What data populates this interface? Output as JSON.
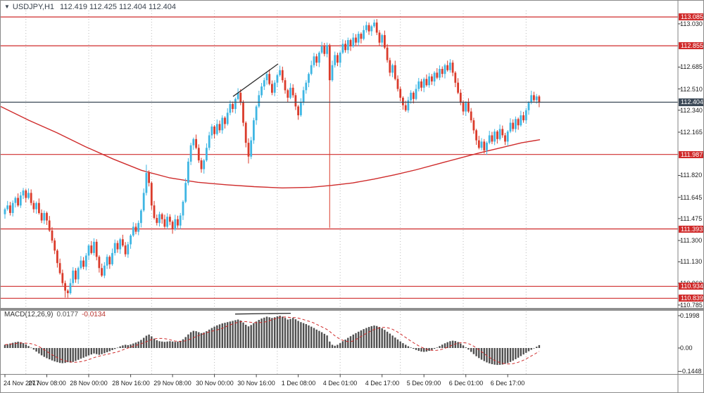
{
  "header": {
    "dropdown_icon": "▼",
    "symbol_period": "USDJPY,H1",
    "quotes": "112.419 112.425 112.404 112.404"
  },
  "macd_panel": {
    "label": "MACD(12,26,9)",
    "value_main": "0.0177",
    "value_signal": "-0.0134"
  },
  "colors": {
    "bull": "#3fb6e3",
    "bear": "#da3b2b",
    "line_red": "#cf2b2b",
    "price_line": "#3d4a58",
    "badge_red": "#d02a2a",
    "badge_current": "#3d4a58",
    "hist": "#4f4f4f",
    "trend": "#2b2b2b",
    "separator": "#b9b9b9",
    "frame": "#808080"
  },
  "chart_data": [
    {
      "type": "candlestick",
      "title": "USDJPY,H1",
      "symbol": "USDJPY",
      "timeframe": "H1",
      "ylim": [
        110.785,
        113.136
      ],
      "grid": false,
      "closes": [
        111.55,
        111.58,
        111.52,
        111.6,
        111.64,
        111.58,
        111.66,
        111.7,
        111.64,
        111.68,
        111.6,
        111.55,
        111.6,
        111.52,
        111.46,
        111.52,
        111.46,
        111.38,
        111.3,
        111.22,
        111.12,
        111.04,
        110.96,
        110.9,
        110.88,
        110.96,
        111.06,
        110.99,
        111.08,
        111.14,
        111.09,
        111.18,
        111.26,
        111.2,
        111.29,
        111.17,
        111.08,
        111.02,
        111.1,
        111.17,
        111.11,
        111.2,
        111.28,
        111.23,
        111.31,
        111.26,
        111.19,
        111.27,
        111.34,
        111.41,
        111.37,
        111.44,
        111.54,
        111.68,
        111.84,
        111.76,
        111.58,
        111.48,
        111.44,
        111.51,
        111.47,
        111.41,
        111.49,
        111.45,
        111.39,
        111.47,
        111.42,
        111.5,
        111.61,
        111.76,
        111.93,
        112.06,
        112.11,
        112.04,
        111.94,
        111.87,
        111.94,
        112.04,
        112.14,
        112.21,
        112.15,
        112.23,
        112.18,
        112.28,
        112.23,
        112.32,
        112.39,
        112.35,
        112.43,
        112.48,
        112.4,
        112.24,
        112.08,
        111.97,
        112.1,
        112.26,
        112.37,
        112.46,
        112.53,
        112.58,
        112.63,
        112.55,
        112.48,
        112.56,
        112.62,
        112.66,
        112.58,
        112.5,
        112.44,
        112.52,
        112.46,
        112.37,
        112.3,
        112.4,
        112.5,
        112.56,
        112.63,
        112.7,
        112.77,
        112.72,
        112.8,
        112.85,
        112.79,
        112.86,
        112.58,
        112.7,
        112.78,
        112.72,
        112.8,
        112.87,
        112.82,
        112.9,
        112.85,
        112.92,
        112.88,
        112.95,
        112.91,
        112.98,
        113.02,
        112.97,
        113.01,
        113.04,
        112.96,
        112.88,
        112.94,
        112.84,
        112.74,
        112.64,
        112.7,
        112.59,
        112.51,
        112.44,
        112.38,
        112.34,
        112.42,
        112.48,
        112.43,
        112.51,
        112.57,
        112.52,
        112.59,
        112.54,
        112.61,
        112.57,
        112.64,
        112.6,
        112.67,
        112.63,
        112.7,
        112.66,
        112.72,
        112.64,
        112.56,
        112.48,
        112.4,
        112.33,
        112.4,
        112.33,
        112.26,
        112.18,
        112.1,
        112.04,
        112.09,
        112.02,
        112.08,
        112.14,
        112.09,
        112.17,
        112.11,
        112.19,
        112.14,
        112.09,
        112.17,
        112.24,
        112.19,
        112.27,
        112.22,
        112.3,
        112.26,
        112.34,
        112.4,
        112.46,
        112.42,
        112.45,
        112.4
      ],
      "wicks": {
        "23": {
          "low": 110.845
        },
        "54": {
          "high": 111.905
        },
        "93": {
          "low": 111.915
        },
        "124": {
          "low": 111.4
        },
        "141": {
          "high": 113.065
        },
        "183": {
          "low": 111.995
        }
      },
      "time_labels": [
        {
          "text": "24 Nov 2017",
          "bar": 0
        },
        {
          "text": "27 Nov 08:00",
          "bar": 16
        },
        {
          "text": "28 Nov 00:00",
          "bar": 32
        },
        {
          "text": "28 Nov 16:00",
          "bar": 48
        },
        {
          "text": "29 Nov 08:00",
          "bar": 64
        },
        {
          "text": "30 Nov 00:00",
          "bar": 80
        },
        {
          "text": "30 Nov 16:00",
          "bar": 96
        },
        {
          "text": "1 Dec 08:00",
          "bar": 112
        },
        {
          "text": "4 Dec 01:00",
          "bar": 128
        },
        {
          "text": "4 Dec 17:00",
          "bar": 144
        },
        {
          "text": "5 Dec 09:00",
          "bar": 160
        },
        {
          "text": "6 Dec 01:00",
          "bar": 176
        },
        {
          "text": "6 Dec 17:00",
          "bar": 192
        }
      ],
      "day_separator_bars": [
        8,
        32,
        56,
        80,
        104,
        128,
        151,
        175,
        199
      ],
      "price_labels": [
        {
          "text": "113.030",
          "price": 113.03
        },
        {
          "text": "112.685",
          "price": 112.685
        },
        {
          "text": "112.510",
          "price": 112.51
        },
        {
          "text": "112.340",
          "price": 112.34
        },
        {
          "text": "112.165",
          "price": 112.165
        },
        {
          "text": "111.820",
          "price": 111.82
        },
        {
          "text": "111.645",
          "price": 111.645
        },
        {
          "text": "111.475",
          "price": 111.475
        },
        {
          "text": "111.300",
          "price": 111.3
        },
        {
          "text": "111.130",
          "price": 111.13
        },
        {
          "text": "110.960",
          "price": 110.96
        },
        {
          "text": "110.785",
          "price": 110.785
        }
      ],
      "line_levels": [
        {
          "text": "113.085",
          "price": 113.085
        },
        {
          "text": "112.855",
          "price": 112.855
        },
        {
          "text": "111.987",
          "price": 111.987
        },
        {
          "text": "111.393",
          "price": 111.393
        },
        {
          "text": "110.934",
          "price": 110.934
        },
        {
          "text": "110.839",
          "price": 110.839
        }
      ],
      "current_price": {
        "text": "112.404",
        "price": 112.404
      },
      "ma_line": [
        [
          0,
          112.37
        ],
        [
          40,
          112.26
        ],
        [
          80,
          112.16
        ],
        [
          120,
          112.05
        ],
        [
          160,
          111.95
        ],
        [
          200,
          111.86
        ],
        [
          240,
          111.8
        ],
        [
          280,
          111.765
        ],
        [
          320,
          111.745
        ],
        [
          360,
          111.73
        ],
        [
          400,
          111.72
        ],
        [
          440,
          111.725
        ],
        [
          470,
          111.74
        ],
        [
          500,
          111.76
        ],
        [
          530,
          111.79
        ],
        [
          560,
          111.825
        ],
        [
          590,
          111.865
        ],
        [
          620,
          111.91
        ],
        [
          650,
          111.955
        ],
        [
          680,
          112.0
        ],
        [
          710,
          112.04
        ],
        [
          740,
          112.08
        ],
        [
          766,
          112.105
        ]
      ],
      "trendline": {
        "x1": 330,
        "p1": 112.45,
        "x2": 394,
        "p2": 112.71
      }
    },
    {
      "type": "bar",
      "name": "MACD(12,26,9)",
      "signal_period": 9,
      "values": [
        0.02,
        0.024,
        0.028,
        0.032,
        0.036,
        0.039,
        0.036,
        0.03,
        0.022,
        0.012,
        0.002,
        -0.01,
        -0.022,
        -0.034,
        -0.045,
        -0.055,
        -0.063,
        -0.07,
        -0.077,
        -0.083,
        -0.088,
        -0.092,
        -0.094,
        -0.092,
        -0.088,
        -0.09,
        -0.086,
        -0.08,
        -0.073,
        -0.066,
        -0.06,
        -0.053,
        -0.046,
        -0.04,
        -0.034,
        -0.038,
        -0.042,
        -0.038,
        -0.032,
        -0.026,
        -0.02,
        -0.013,
        -0.006,
        0.002,
        0.01,
        0.016,
        0.02,
        0.018,
        0.022,
        0.028,
        0.034,
        0.04,
        0.05,
        0.063,
        0.076,
        0.083,
        0.072,
        0.058,
        0.048,
        0.042,
        0.04,
        0.038,
        0.04,
        0.042,
        0.04,
        0.038,
        0.04,
        0.044,
        0.054,
        0.068,
        0.084,
        0.098,
        0.106,
        0.104,
        0.098,
        0.092,
        0.096,
        0.104,
        0.114,
        0.124,
        0.132,
        0.14,
        0.146,
        0.152,
        0.156,
        0.16,
        0.164,
        0.168,
        0.172,
        0.176,
        0.17,
        0.158,
        0.144,
        0.134,
        0.142,
        0.154,
        0.164,
        0.174,
        0.182,
        0.188,
        0.194,
        0.19,
        0.186,
        0.19,
        0.196,
        0.2,
        0.194,
        0.186,
        0.176,
        0.18,
        0.186,
        0.178,
        0.168,
        0.16,
        0.154,
        0.148,
        0.14,
        0.132,
        0.124,
        0.114,
        0.106,
        0.098,
        0.088,
        0.078,
        0.04,
        0.02,
        0.014,
        0.02,
        0.03,
        0.042,
        0.052,
        0.063,
        0.073,
        0.083,
        0.092,
        0.101,
        0.109,
        0.117,
        0.124,
        0.13,
        0.135,
        0.139,
        0.136,
        0.13,
        0.122,
        0.112,
        0.101,
        0.089,
        0.077,
        0.065,
        0.053,
        0.041,
        0.03,
        0.02,
        0.011,
        0.003,
        -0.005,
        -0.012,
        -0.018,
        -0.022,
        -0.024,
        -0.022,
        -0.018,
        -0.012,
        -0.005,
        0.003,
        0.012,
        0.021,
        0.029,
        0.036,
        0.042,
        0.045,
        0.043,
        0.037,
        0.028,
        0.016,
        0.004,
        -0.01,
        -0.024,
        -0.038,
        -0.051,
        -0.062,
        -0.072,
        -0.081,
        -0.089,
        -0.095,
        -0.1,
        -0.103,
        -0.105,
        -0.104,
        -0.102,
        -0.098,
        -0.093,
        -0.086,
        -0.078,
        -0.069,
        -0.06,
        -0.05,
        -0.04,
        -0.03,
        -0.02,
        -0.011,
        -0.002,
        0.008,
        0.0177
      ],
      "axis_labels": [
        {
          "text": "0.1998",
          "v": 0.1998
        },
        {
          "text": "0.00",
          "v": 0.0
        },
        {
          "text": "-0.1448",
          "v": -0.1448
        }
      ],
      "current": {
        "macd": "0.0177",
        "signal": "-0.0134"
      },
      "trendline": {
        "x1": 333,
        "v1": 0.21,
        "x2": 412,
        "v2": 0.215
      }
    }
  ]
}
